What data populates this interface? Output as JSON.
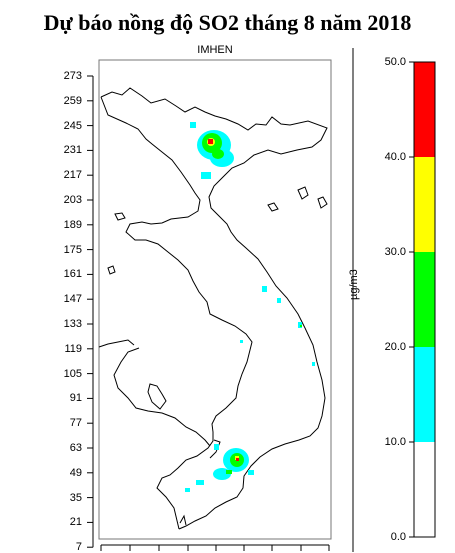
{
  "title": "Dự báo nồng độ SO2 tháng 8 năm 2018",
  "subtitle": "IMHEN",
  "y_axis_ticks": [
    "273",
    "259",
    "245",
    "231",
    "217",
    "203",
    "189",
    "175",
    "161",
    "147",
    "133",
    "119",
    "105",
    "91",
    "77",
    "63",
    "49",
    "35",
    "21",
    "7"
  ],
  "colorbar": {
    "unit_label": "µg/m3",
    "ticks": [
      "50.0",
      "40.0",
      "30.0",
      "20.0",
      "10.0",
      "0.0"
    ],
    "bands": [
      {
        "from": 0,
        "to": 10,
        "color": "#ffffff"
      },
      {
        "from": 10,
        "to": 20,
        "color": "#00ffff"
      },
      {
        "from": 20,
        "to": 30,
        "color": "#00ff00"
      },
      {
        "from": 30,
        "to": 40,
        "color": "#ffff00"
      },
      {
        "from": 40,
        "to": 50,
        "color": "#ff0000"
      }
    ]
  }
}
